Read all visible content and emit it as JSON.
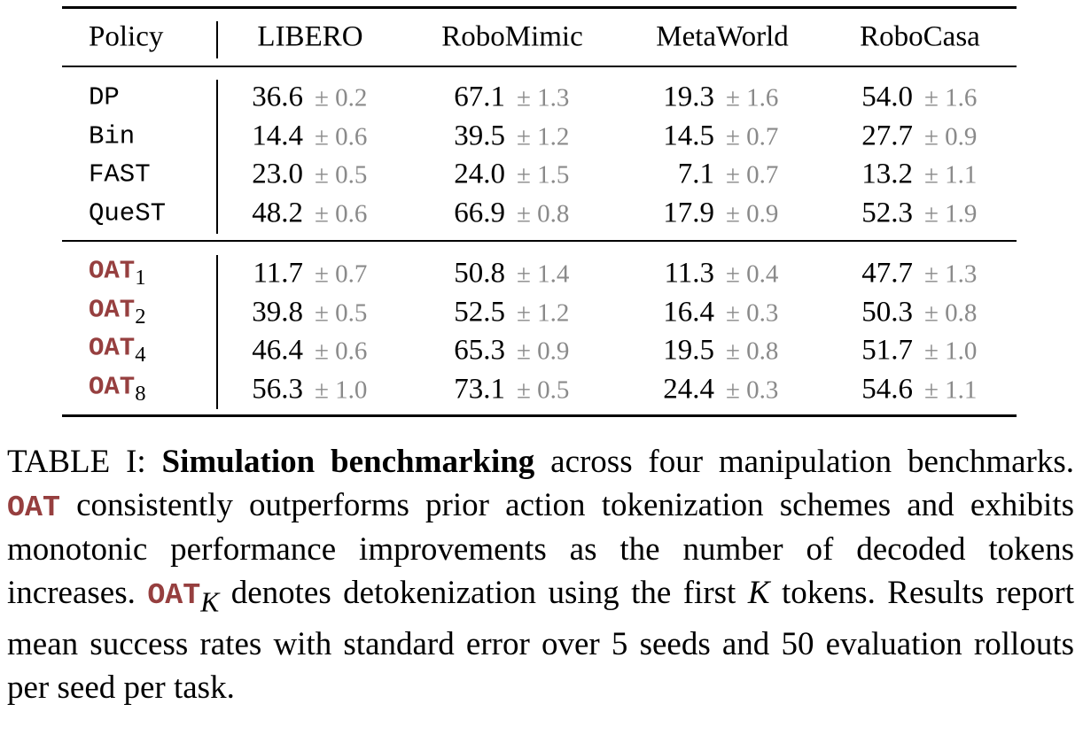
{
  "table": {
    "header": [
      "Policy",
      "LIBERO",
      "RoboMimic",
      "MetaWorld",
      "RoboCasa"
    ],
    "groups": [
      [
        {
          "policy": {
            "name": "DP"
          },
          "cells": [
            {
              "mean": "36.6",
              "err": "± 0.2"
            },
            {
              "mean": "67.1",
              "err": "± 1.3"
            },
            {
              "mean": "19.3",
              "err": "± 1.6"
            },
            {
              "mean": "54.0",
              "err": "± 1.6"
            }
          ]
        },
        {
          "policy": {
            "name": "Bin"
          },
          "cells": [
            {
              "mean": "14.4",
              "err": "± 0.6"
            },
            {
              "mean": "39.5",
              "err": "± 1.2"
            },
            {
              "mean": "14.5",
              "err": "± 0.7"
            },
            {
              "mean": "27.7",
              "err": "± 0.9"
            }
          ]
        },
        {
          "policy": {
            "name": "FAST"
          },
          "cells": [
            {
              "mean": "23.0",
              "err": "± 0.5"
            },
            {
              "mean": "24.0",
              "err": "± 1.5"
            },
            {
              "mean": "7.1",
              "err": "± 0.7"
            },
            {
              "mean": "13.2",
              "err": "± 1.1"
            }
          ]
        },
        {
          "policy": {
            "name": "QueST"
          },
          "cells": [
            {
              "mean": "48.2",
              "err": "± 0.6"
            },
            {
              "mean": "66.9",
              "err": "± 0.8"
            },
            {
              "mean": "17.9",
              "err": "± 0.9"
            },
            {
              "mean": "52.3",
              "err": "± 1.9"
            }
          ]
        }
      ],
      [
        {
          "policy": {
            "name": "OAT",
            "sub": "1",
            "highlight": true
          },
          "cells": [
            {
              "mean": "11.7",
              "err": "± 0.7"
            },
            {
              "mean": "50.8",
              "err": "± 1.4"
            },
            {
              "mean": "11.3",
              "err": "± 0.4"
            },
            {
              "mean": "47.7",
              "err": "± 1.3"
            }
          ]
        },
        {
          "policy": {
            "name": "OAT",
            "sub": "2",
            "highlight": true
          },
          "cells": [
            {
              "mean": "39.8",
              "err": "± 0.5"
            },
            {
              "mean": "52.5",
              "err": "± 1.2"
            },
            {
              "mean": "16.4",
              "err": "± 0.3"
            },
            {
              "mean": "50.3",
              "err": "± 0.8"
            }
          ]
        },
        {
          "policy": {
            "name": "OAT",
            "sub": "4",
            "highlight": true
          },
          "cells": [
            {
              "mean": "46.4",
              "err": "± 0.6"
            },
            {
              "mean": "65.3",
              "err": "± 0.9"
            },
            {
              "mean": "19.5",
              "err": "± 0.8"
            },
            {
              "mean": "51.7",
              "err": "± 1.0"
            }
          ]
        },
        {
          "policy": {
            "name": "OAT",
            "sub": "8",
            "highlight": true
          },
          "cells": [
            {
              "mean": "56.3",
              "err": "± 1.0"
            },
            {
              "mean": "73.1",
              "err": "± 0.5"
            },
            {
              "mean": "24.4",
              "err": "± 0.3"
            },
            {
              "mean": "54.6",
              "err": "± 1.1"
            }
          ]
        }
      ]
    ]
  },
  "caption": [
    {
      "text": "TABLE I:"
    },
    {
      "text": "Simulation benchmarking",
      "style": "bold"
    },
    {
      "text": "across four manipulation benchmarks."
    },
    {
      "text": "OAT",
      "style": "oat"
    },
    {
      "text": "consistently outperforms prior action tokenization schemes and exhibits monotonic performance improvements as the number of decoded tokens increases."
    },
    {
      "text": "OAT",
      "style": "oat"
    },
    {
      "text": "K",
      "style": "sub-italic"
    },
    {
      "text": "denotes detokenization using the first"
    },
    {
      "text": "K",
      "style": "italic"
    },
    {
      "text": "tokens. Results report mean success rates with standard error over 5 seeds and 50 evaluation rollouts per seed per task."
    }
  ]
}
